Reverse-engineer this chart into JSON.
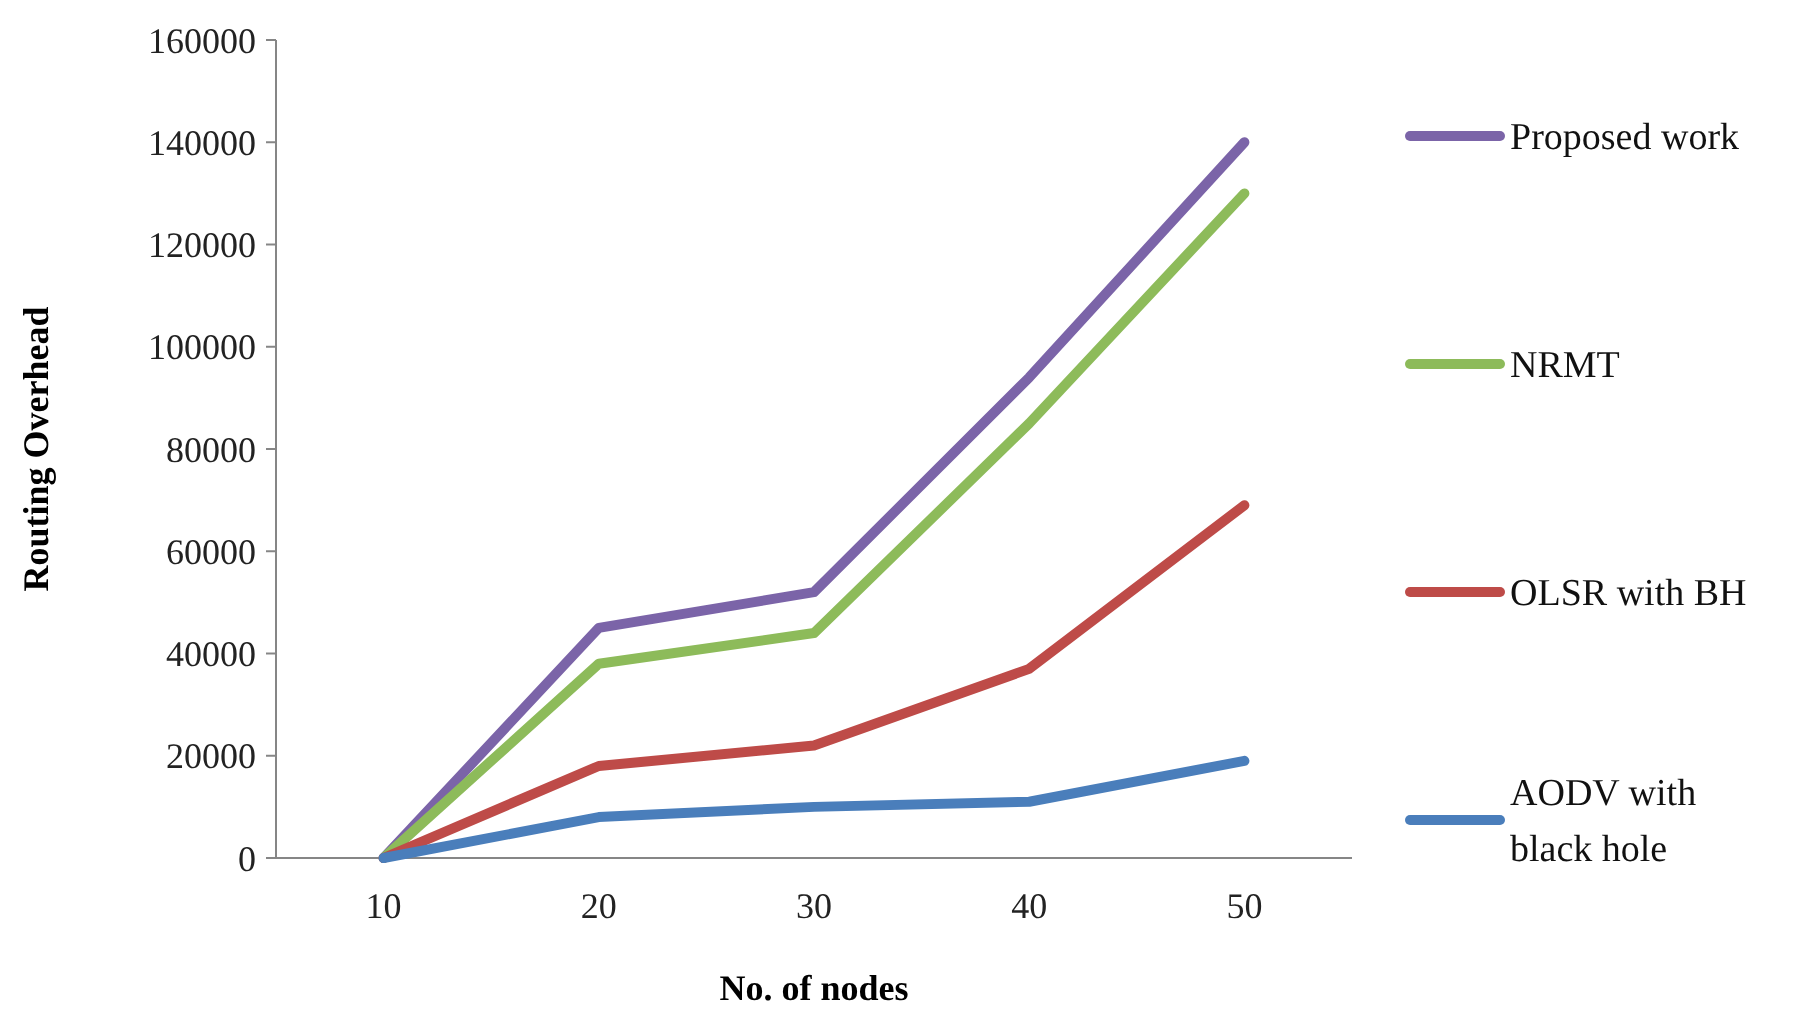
{
  "chart_data": {
    "type": "line",
    "xlabel": "No. of nodes",
    "ylabel": "Routing Overhead",
    "categories": [
      "10",
      "20",
      "30",
      "40",
      "50"
    ],
    "ylim": [
      0,
      160000
    ],
    "yticks": [
      0,
      20000,
      40000,
      60000,
      80000,
      100000,
      120000,
      140000,
      160000
    ],
    "grid": false,
    "legend": "right",
    "marker": "none",
    "line_style": "solid",
    "series": [
      {
        "name": "Proposed work",
        "color": "#7b64a8",
        "values": [
          0,
          45000,
          52000,
          94000,
          140000
        ]
      },
      {
        "name": "NRMT",
        "color": "#8dbb5a",
        "values": [
          0,
          38000,
          44000,
          85000,
          130000
        ]
      },
      {
        "name": "OLSR with BH",
        "color": "#be4b48",
        "values": [
          0,
          18000,
          22000,
          37000,
          69000
        ]
      },
      {
        "name": "AODV with black hole",
        "color": "#4a7ebb",
        "values": [
          0,
          8000,
          10000,
          11000,
          19000
        ]
      }
    ]
  }
}
